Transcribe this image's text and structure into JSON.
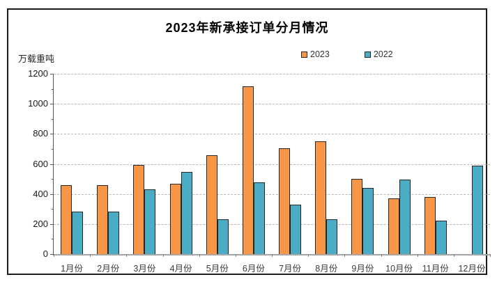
{
  "chart_data": {
    "type": "bar",
    "title": "2023年新承接订单分月情况",
    "unit_label": "万载重吨",
    "categories": [
      "1月份",
      "2月份",
      "3月份",
      "4月份",
      "5月份",
      "6月份",
      "7月份",
      "8月份",
      "9月份",
      "10月份",
      "11月份",
      "12月份"
    ],
    "series": [
      {
        "name": "2023",
        "color": "#F79646",
        "values": [
          458,
          461,
          591,
          467,
          658,
          1117,
          706,
          752,
          500,
          370,
          378,
          null
        ]
      },
      {
        "name": "2022",
        "color": "#4BACC6",
        "values": [
          281,
          281,
          430,
          548,
          230,
          477,
          327,
          231,
          438,
          495,
          222,
          590
        ]
      }
    ],
    "ylim": [
      0,
      1200
    ],
    "y_ticks": [
      0,
      200,
      400,
      600,
      800,
      1000,
      1200
    ],
    "y_minor_step": 100,
    "grid": "horizontal-dashed",
    "legend_position": "top",
    "xlabel": "",
    "ylabel": ""
  },
  "colors": {
    "grid": "#b8b8b8",
    "axis": "#595959",
    "frame_border": "#1a1a1a",
    "background": "#ffffff"
  }
}
